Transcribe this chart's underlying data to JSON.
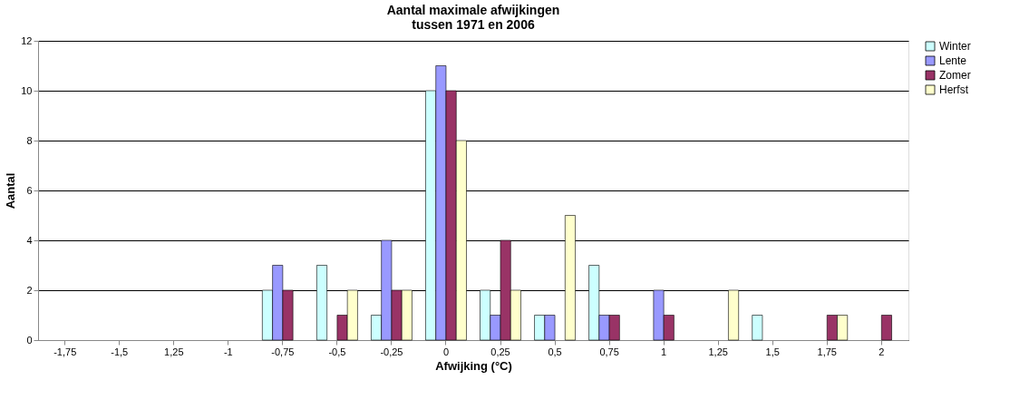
{
  "chart_data": {
    "type": "bar",
    "title": "Aantal maximale afwijkingen\ntussen 1971 en 2006",
    "xlabel": "Afwijking (°C)",
    "ylabel": "Aantal",
    "categories": [
      "-1,75",
      "-1,5",
      "1,25",
      "-1",
      "-0,75",
      "-0,5",
      "-0,25",
      "0",
      "0,25",
      "0,5",
      "0,75",
      "1",
      "1,25",
      "1,5",
      "1,75",
      "2"
    ],
    "series": [
      {
        "name": "Winter",
        "color": "#ccffff",
        "values": [
          null,
          null,
          null,
          null,
          2,
          3,
          1,
          10,
          2,
          1,
          3,
          null,
          null,
          1,
          null,
          null
        ]
      },
      {
        "name": "Lente",
        "color": "#9999ff",
        "values": [
          null,
          null,
          null,
          null,
          3,
          null,
          4,
          11,
          1,
          1,
          1,
          2,
          null,
          null,
          null,
          null
        ]
      },
      {
        "name": "Zomer",
        "color": "#993366",
        "values": [
          null,
          null,
          null,
          null,
          2,
          1,
          2,
          10,
          4,
          null,
          1,
          1,
          null,
          null,
          1,
          1
        ]
      },
      {
        "name": "Herfst",
        "color": "#ffffcc",
        "values": [
          null,
          null,
          null,
          null,
          null,
          2,
          2,
          8,
          2,
          5,
          null,
          null,
          2,
          null,
          1,
          null
        ]
      }
    ],
    "ylim": [
      0,
      12
    ],
    "yticks": [
      0,
      2,
      4,
      6,
      8,
      10,
      12
    ],
    "grid": "y",
    "legend": "right"
  }
}
